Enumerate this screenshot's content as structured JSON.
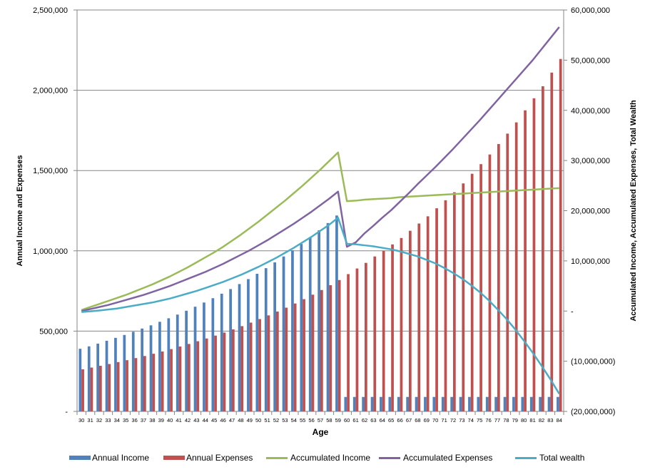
{
  "colors": {
    "annual_income": "#4F81BD",
    "annual_expenses": "#C0504D",
    "accumulated_income": "#9BBB59",
    "accumulated_expenses": "#8064A2",
    "total_wealth": "#4BACC6"
  },
  "legend": {
    "annual_income": "Annual Income",
    "annual_expenses": "Annual Expenses",
    "accumulated_income": "Accumulated Income",
    "accumulated_expenses": "Accumulated Expenses",
    "total_wealth": "Total wealth"
  },
  "chart_data": {
    "type": "bar",
    "xlabel": "Age",
    "ylabel": "Annual Income and Expenses",
    "y2label": "Accumulated Income, Accumulated Expenses, Total Wealth",
    "ylim": [
      0,
      2500000
    ],
    "y2lim": [
      -20000000,
      60000000
    ],
    "grid": true,
    "legend_position": "bottom",
    "categories": [
      "30",
      "31",
      "32",
      "33",
      "34",
      "35",
      "36",
      "37",
      "38",
      "39",
      "40",
      "41",
      "42",
      "43",
      "44",
      "45",
      "46",
      "47",
      "48",
      "49",
      "50",
      "51",
      "52",
      "53",
      "54",
      "55",
      "56",
      "57",
      "58",
      "59",
      "60",
      "61",
      "62",
      "63",
      "64",
      "65",
      "66",
      "67",
      "68",
      "69",
      "70",
      "71",
      "72",
      "73",
      "74",
      "75",
      "76",
      "77",
      "78",
      "79",
      "80",
      "81",
      "82",
      "83",
      "84"
    ],
    "y_ticks": [
      {
        "value": 0,
        "label": "-"
      },
      {
        "value": 500000,
        "label": "500,000"
      },
      {
        "value": 1000000,
        "label": "1,000,000"
      },
      {
        "value": 1500000,
        "label": "1,500,000"
      },
      {
        "value": 2000000,
        "label": "2,000,000"
      },
      {
        "value": 2500000,
        "label": "2,500,000"
      }
    ],
    "y2_ticks": [
      {
        "value": -20000000,
        "label": "(20,000,000)"
      },
      {
        "value": -10000000,
        "label": "(10,000,000)"
      },
      {
        "value": 0,
        "label": "-"
      },
      {
        "value": 10000000,
        "label": "10,000,000"
      },
      {
        "value": 20000000,
        "label": "20,000,000"
      },
      {
        "value": 30000000,
        "label": "30,000,000"
      },
      {
        "value": 40000000,
        "label": "40,000,000"
      },
      {
        "value": 50000000,
        "label": "50,000,000"
      },
      {
        "value": 60000000,
        "label": "60,000,000"
      }
    ],
    "series": [
      {
        "name": "Annual Income",
        "type": "bar",
        "axis": "left",
        "values": [
          390000,
          405000,
          422000,
          440000,
          458000,
          476000,
          496000,
          516000,
          536000,
          558000,
          580000,
          603000,
          627000,
          652000,
          678000,
          705000,
          733000,
          762000,
          793000,
          824000,
          857000,
          892000,
          928000,
          965000,
          1003000,
          1043000,
          1085000,
          1128000,
          1173000,
          1220000,
          90000,
          90000,
          90000,
          90000,
          90000,
          90000,
          90000,
          90000,
          90000,
          90000,
          90000,
          90000,
          90000,
          90000,
          90000,
          90000,
          90000,
          90000,
          90000,
          90000,
          90000,
          90000,
          90000,
          90000,
          90000
        ]
      },
      {
        "name": "Annual Expenses",
        "type": "bar",
        "axis": "left",
        "values": [
          262000,
          273000,
          284000,
          295000,
          307000,
          319000,
          332000,
          345000,
          359000,
          373000,
          388000,
          404000,
          420000,
          437000,
          454000,
          472000,
          491000,
          511000,
          531000,
          553000,
          575000,
          598000,
          622000,
          646000,
          672000,
          699000,
          727000,
          756000,
          786000,
          818000,
          855000,
          890000,
          925000,
          965000,
          1000000,
          1040000,
          1080000,
          1125000,
          1170000,
          1215000,
          1265000,
          1315000,
          1365000,
          1420000,
          1480000,
          1540000,
          1600000,
          1665000,
          1730000,
          1800000,
          1875000,
          1950000,
          2025000,
          2110000,
          2195000
        ]
      },
      {
        "name": "Accumulated Income",
        "type": "line",
        "axis": "right",
        "values": [
          200000,
          800000,
          1400000,
          2000000,
          2600000,
          3200000,
          3900000,
          4600000,
          5300000,
          6100000,
          6900000,
          7800000,
          8700000,
          9700000,
          10700000,
          11700000,
          12800000,
          14000000,
          15200000,
          16500000,
          17800000,
          19200000,
          20600000,
          22000000,
          23500000,
          25000000,
          26600000,
          28200000,
          29900000,
          31600000,
          21900000,
          22000000,
          22200000,
          22300000,
          22400000,
          22500000,
          22700000,
          22800000,
          22900000,
          23000000,
          23100000,
          23200000,
          23300000,
          23400000,
          23500000,
          23600000,
          23700000,
          23800000,
          23900000,
          24000000,
          24100000,
          24200000,
          24300000,
          24400000,
          24500000
        ]
      },
      {
        "name": "Accumulated Expenses",
        "type": "line",
        "axis": "right",
        "values": [
          0,
          400000,
          800000,
          1200000,
          1700000,
          2200000,
          2700000,
          3200000,
          3800000,
          4400000,
          5000000,
          5700000,
          6400000,
          7100000,
          7800000,
          8600000,
          9400000,
          10300000,
          11200000,
          12100000,
          13100000,
          14100000,
          15200000,
          16300000,
          17400000,
          18600000,
          19800000,
          21100000,
          22400000,
          23800000,
          12800000,
          13700000,
          15500000,
          17000000,
          18600000,
          20100000,
          21800000,
          23500000,
          25300000,
          27000000,
          28700000,
          30500000,
          32300000,
          34200000,
          36100000,
          38000000,
          40000000,
          42000000,
          44000000,
          46000000,
          48000000,
          50000000,
          52200000,
          54400000,
          56600000
        ]
      },
      {
        "name": "Total wealth",
        "type": "line",
        "axis": "right",
        "values": [
          -200000,
          -50000,
          100000,
          300000,
          500000,
          800000,
          1100000,
          1400000,
          1700000,
          2100000,
          2500000,
          3000000,
          3500000,
          4000000,
          4600000,
          5200000,
          5800000,
          6500000,
          7200000,
          8000000,
          8800000,
          9700000,
          10600000,
          11600000,
          12600000,
          13700000,
          14800000,
          16000000,
          17200000,
          18600000,
          13400000,
          13300000,
          13100000,
          12900000,
          12600000,
          12300000,
          11900000,
          11400000,
          10900000,
          10200000,
          9500000,
          8600000,
          7600000,
          6500000,
          5200000,
          3800000,
          2200000,
          400000,
          -1500000,
          -3600000,
          -5900000,
          -8300000,
          -10900000,
          -13600000,
          -16500000
        ]
      }
    ]
  }
}
